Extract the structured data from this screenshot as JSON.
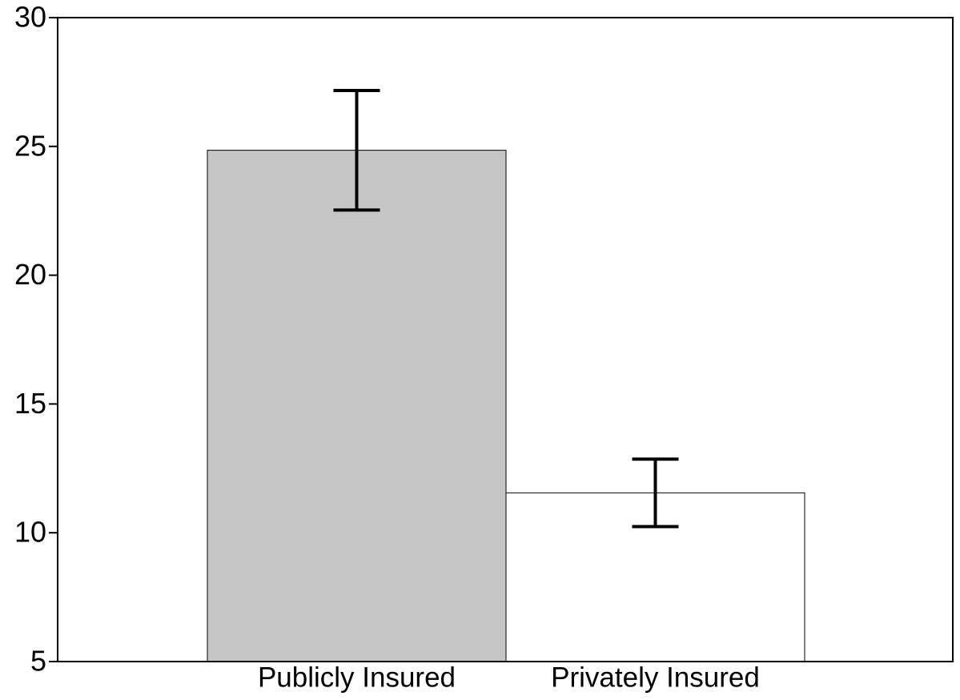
{
  "chart_data": {
    "type": "bar",
    "categories": [
      "Publicly Insured",
      "Privately Insured"
    ],
    "values": [
      24.85,
      11.55
    ],
    "errors": [
      2.32,
      1.31
    ],
    "colors": [
      "#c5c6c5",
      "#ffffff"
    ],
    "ylim": [
      5,
      30
    ],
    "yticks": [
      5,
      10,
      15,
      20,
      25,
      30
    ],
    "grid": false
  }
}
